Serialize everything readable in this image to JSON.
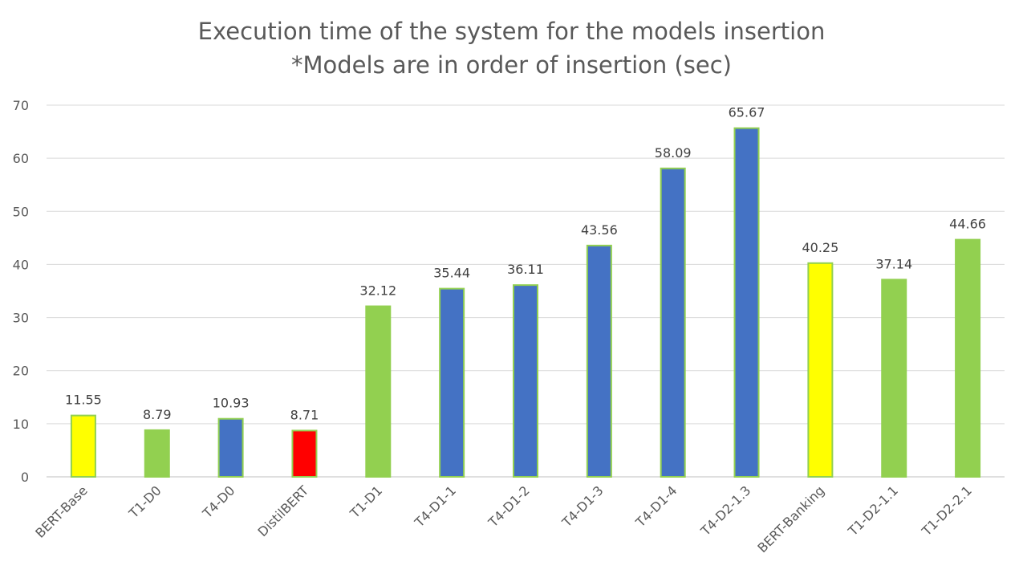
{
  "chart_data": {
    "type": "bar",
    "title": "Execution time of the system for the models insertion",
    "subtitle": "*Models are in order of insertion (sec)",
    "xlabel": "",
    "ylabel": "",
    "ylim": [
      0,
      70
    ],
    "yticks": [
      "0",
      "10",
      "20",
      "30",
      "40",
      "50",
      "60",
      "70"
    ],
    "grid": true,
    "legend": "none",
    "categories": [
      "BERT-Base",
      "T1-D0",
      "T4-D0",
      "DistilBERT",
      "T1-D1",
      "T4-D1-1",
      "T4-D1-2",
      "T4-D1-3",
      "T4-D1-4",
      "T4-D2-1.3",
      "BERT-Banking",
      "T1-D2-1.1",
      "T1-D2-2.1"
    ],
    "values": [
      11.55,
      8.79,
      10.93,
      8.71,
      32.12,
      35.44,
      36.11,
      43.56,
      58.09,
      65.67,
      40.25,
      37.14,
      44.66
    ],
    "data_labels": [
      "11.55",
      "8.79",
      "10.93",
      "8.71",
      "32.12",
      "35.44",
      "36.11",
      "43.56",
      "58.09",
      "65.67",
      "40.25",
      "37.14",
      "44.66"
    ],
    "bar_colors": [
      "#FFFF00",
      "#92D050",
      "#4472C4",
      "#FF0000",
      "#92D050",
      "#4472C4",
      "#4472C4",
      "#4472C4",
      "#4472C4",
      "#4472C4",
      "#FFFF00",
      "#92D050",
      "#92D050"
    ],
    "bar_outline_color": "#92D050"
  }
}
